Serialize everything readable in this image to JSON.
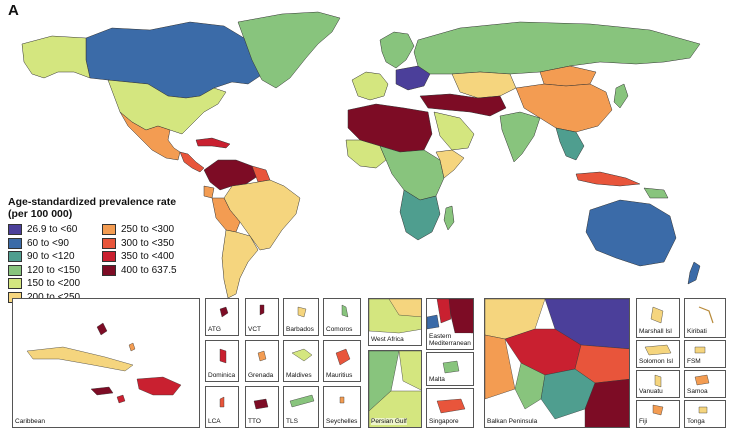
{
  "panel_label": "A",
  "legend": {
    "title": "Age-standardized prevalence rate\n(per 100 000)",
    "title_line1": "Age-standardized prevalence rate",
    "title_line2": "(per 100 000)",
    "items": [
      {
        "label": "26.9  to  <60",
        "color": "#4b3f9a"
      },
      {
        "label": "60  to  <90",
        "color": "#3b6ba8"
      },
      {
        "label": "90  to  <120",
        "color": "#4f9e8f"
      },
      {
        "label": "120  to  <150",
        "color": "#88c47d"
      },
      {
        "label": "150  to  <200",
        "color": "#d4e67f"
      },
      {
        "label": "200  to  <250",
        "color": "#f5d57e"
      },
      {
        "label": "250  to  <300",
        "color": "#f39c52"
      },
      {
        "label": "300  to  <350",
        "color": "#e8553b"
      },
      {
        "label": "350  to  <400",
        "color": "#c92030"
      },
      {
        "label": "400  to  637.5",
        "color": "#7d0c25"
      }
    ]
  },
  "insets": [
    {
      "label": "Caribbean"
    },
    {
      "label": "ATG"
    },
    {
      "label": "VCT"
    },
    {
      "label": "Barbados"
    },
    {
      "label": "Comoros"
    },
    {
      "label": "Dominica"
    },
    {
      "label": "Grenada"
    },
    {
      "label": "Maldives"
    },
    {
      "label": "Mauritius"
    },
    {
      "label": "LCA"
    },
    {
      "label": "TTO"
    },
    {
      "label": "TLS"
    },
    {
      "label": "Seychelles"
    },
    {
      "label": "West Africa"
    },
    {
      "label": "Eastern\nMediterranean"
    },
    {
      "label": "Malta"
    },
    {
      "label": "Persian Gulf"
    },
    {
      "label": "Singapore"
    },
    {
      "label": "Balkan Peninsula"
    },
    {
      "label": "Marshall Isl"
    },
    {
      "label": "Kiribati"
    },
    {
      "label": "Solomon Isl"
    },
    {
      "label": "FSM"
    },
    {
      "label": "Vanuatu"
    },
    {
      "label": "Samoa"
    },
    {
      "label": "Fiji"
    },
    {
      "label": "Tonga"
    }
  ]
}
